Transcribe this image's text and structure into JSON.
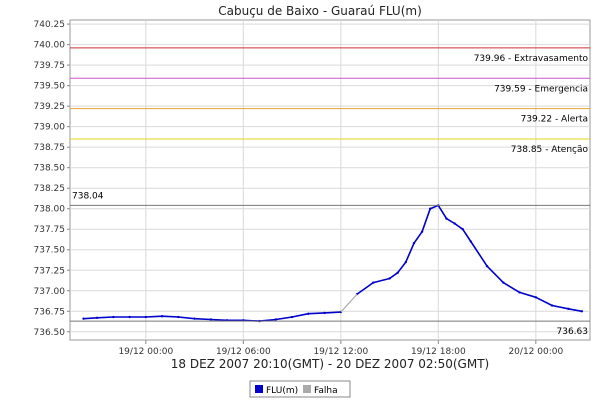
{
  "chart_data": {
    "type": "line",
    "title": "Cabuçu de Baixo - Guaraú FLU(m)",
    "xlabel": "18 DEZ 2007 20:10(GMT) - 20 DEZ 2007 02:50(GMT)",
    "ylabel": "",
    "x_ticks": [
      "19/12 00:00",
      "19/12 06:00",
      "19/12 12:00",
      "19/12 18:00",
      "20/12 00:00"
    ],
    "y_ticks": [
      "736.50",
      "736.75",
      "737.00",
      "737.25",
      "737.50",
      "737.75",
      "738.00",
      "738.25",
      "738.50",
      "738.75",
      "739.00",
      "739.25",
      "739.50",
      "739.75",
      "740.00",
      "740.25"
    ],
    "ylim": [
      736.4,
      740.3
    ],
    "xlim": [
      "2007-12-18 19:20",
      "2007-12-20 03:20"
    ],
    "grid": true,
    "legend_position": "bottom",
    "thresholds": [
      {
        "value": 739.96,
        "label": "739.96 - Extravasamento",
        "color": "#cc3333"
      },
      {
        "value": 739.59,
        "label": "739.59 - Emergencia",
        "color": "#cc55cc"
      },
      {
        "value": 739.22,
        "label": "739.22 - Alerta",
        "color": "#e8a33a"
      },
      {
        "value": 738.85,
        "label": "738.85 - Atenção",
        "color": "#e6d21a"
      }
    ],
    "annotations": [
      {
        "value": 738.04,
        "label": "738.04",
        "position": "left"
      },
      {
        "value": 736.63,
        "label": "736.63",
        "position": "right"
      }
    ],
    "series": [
      {
        "name": "FLU(m)",
        "color": "#0000cc",
        "points": [
          [
            "2007-12-18 20:10",
            736.66
          ],
          [
            "2007-12-18 21:00",
            736.67
          ],
          [
            "2007-12-18 22:00",
            736.68
          ],
          [
            "2007-12-18 23:00",
            736.68
          ],
          [
            "2007-12-19 00:00",
            736.68
          ],
          [
            "2007-12-19 01:00",
            736.69
          ],
          [
            "2007-12-19 02:00",
            736.68
          ],
          [
            "2007-12-19 03:00",
            736.66
          ],
          [
            "2007-12-19 04:00",
            736.65
          ],
          [
            "2007-12-19 05:00",
            736.64
          ],
          [
            "2007-12-19 06:00",
            736.64
          ],
          [
            "2007-12-19 07:00",
            736.63
          ],
          [
            "2007-12-19 08:00",
            736.65
          ],
          [
            "2007-12-19 09:00",
            736.68
          ],
          [
            "2007-12-19 10:00",
            736.72
          ],
          [
            "2007-12-19 11:00",
            736.73
          ],
          [
            "2007-12-19 12:00",
            736.74
          ]
        ]
      },
      {
        "name": "FLU(m)",
        "color": "#0000cc",
        "points": [
          [
            "2007-12-19 13:00",
            736.96
          ],
          [
            "2007-12-19 14:00",
            737.1
          ],
          [
            "2007-12-19 15:00",
            737.15
          ],
          [
            "2007-12-19 15:30",
            737.22
          ],
          [
            "2007-12-19 16:00",
            737.35
          ],
          [
            "2007-12-19 16:30",
            737.58
          ],
          [
            "2007-12-19 17:00",
            737.72
          ],
          [
            "2007-12-19 17:30",
            738.0
          ],
          [
            "2007-12-19 18:00",
            738.04
          ],
          [
            "2007-12-19 18:30",
            737.88
          ],
          [
            "2007-12-19 19:00",
            737.82
          ],
          [
            "2007-12-19 19:30",
            737.75
          ],
          [
            "2007-12-19 20:00",
            737.6
          ],
          [
            "2007-12-19 21:00",
            737.3
          ],
          [
            "2007-12-19 22:00",
            737.1
          ],
          [
            "2007-12-19 23:00",
            736.98
          ],
          [
            "2007-12-20 00:00",
            736.92
          ],
          [
            "2007-12-20 01:00",
            736.82
          ],
          [
            "2007-12-20 02:00",
            736.78
          ],
          [
            "2007-12-20 02:50",
            736.75
          ]
        ]
      },
      {
        "name": "Falha",
        "color": "#aaaaaa",
        "points": [
          [
            "2007-12-19 12:00",
            736.74
          ],
          [
            "2007-12-19 13:00",
            736.96
          ]
        ]
      }
    ],
    "legend": [
      {
        "name": "FLU(m)",
        "color": "#0000cc"
      },
      {
        "name": "Falha",
        "color": "#aaaaaa"
      }
    ]
  }
}
